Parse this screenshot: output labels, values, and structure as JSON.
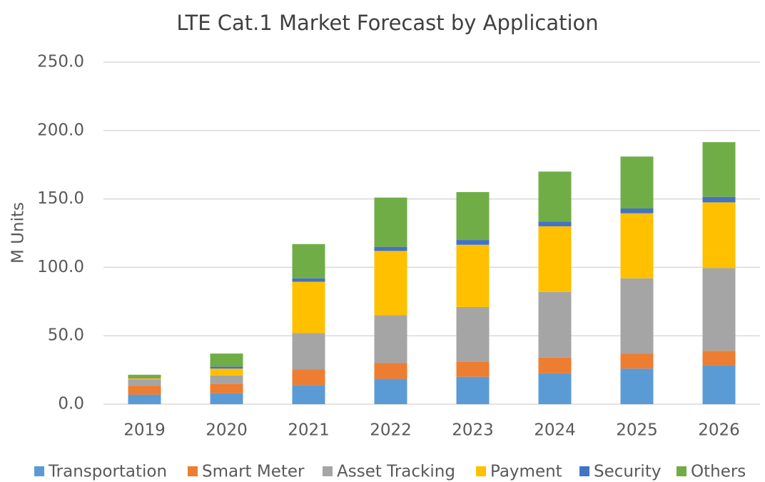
{
  "chart_data": {
    "type": "bar",
    "stacked": true,
    "title": "LTE Cat.1 Market Forecast by Application",
    "y_label": "M Units",
    "categories": [
      "2019",
      "2020",
      "2021",
      "2022",
      "2023",
      "2024",
      "2025",
      "2026"
    ],
    "series": [
      {
        "name": "Transportation",
        "color": "#5b9bd5",
        "values": [
          7,
          8,
          14,
          18.5,
          20,
          22.5,
          26,
          28.5
        ]
      },
      {
        "name": "Smart Meter",
        "color": "#ed7d31",
        "values": [
          6.5,
          7,
          11.5,
          11.5,
          11,
          11.5,
          11,
          10.5
        ]
      },
      {
        "name": "Asset Tracking",
        "color": "#a5a5a5",
        "values": [
          4.5,
          6,
          26.5,
          35,
          40,
          48,
          55,
          60.5
        ]
      },
      {
        "name": "Payment",
        "color": "#ffc000",
        "values": [
          1,
          5,
          37.5,
          47,
          45.5,
          48,
          47.5,
          48
        ]
      },
      {
        "name": "Security",
        "color": "#4472c4",
        "values": [
          0.5,
          1.5,
          2.5,
          3,
          3.5,
          3.5,
          3.5,
          4
        ]
      },
      {
        "name": "Others",
        "color": "#70ad47",
        "values": [
          2,
          9.5,
          25,
          36,
          35,
          36.5,
          38,
          40
        ]
      }
    ],
    "ylim": [
      0,
      250
    ],
    "yticks": [
      {
        "value": 0,
        "label": "0.0"
      },
      {
        "value": 50,
        "label": "50.0"
      },
      {
        "value": 100,
        "label": "100.0"
      },
      {
        "value": 150,
        "label": "150.0"
      },
      {
        "value": 200,
        "label": "200.0"
      },
      {
        "value": 250,
        "label": "250.0"
      }
    ],
    "grid": true,
    "legend": "bottom"
  }
}
